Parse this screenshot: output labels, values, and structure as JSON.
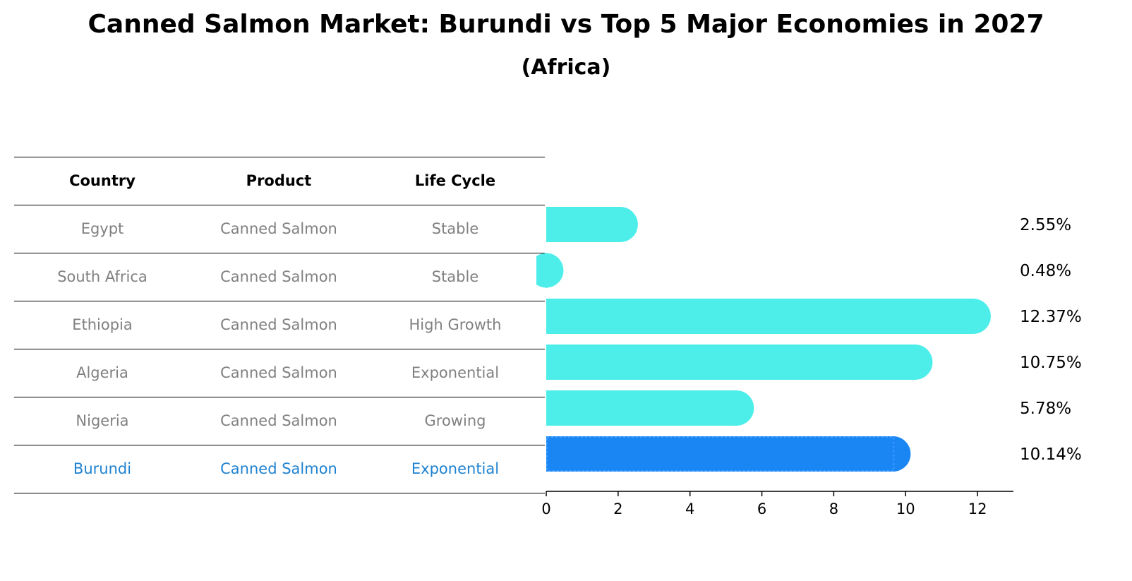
{
  "title": "Canned Salmon Market: Burundi vs Top 5 Major Economies in 2027",
  "subtitle": "(Africa)",
  "table": {
    "headers": [
      "Country",
      "Product",
      "Life Cycle"
    ],
    "rows": [
      [
        "Egypt",
        "Canned Salmon",
        "Stable"
      ],
      [
        "South Africa",
        "Canned Salmon",
        "Stable"
      ],
      [
        "Ethiopia",
        "Canned Salmon",
        "High Growth"
      ],
      [
        "Algeria",
        "Canned Salmon",
        "Exponential"
      ],
      [
        "Nigeria",
        "Canned Salmon",
        "Growing"
      ],
      [
        "Burundi",
        "Canned Salmon",
        "Exponential"
      ]
    ]
  },
  "chart_data": {
    "type": "bar",
    "orientation": "horizontal",
    "categories": [
      "Egypt",
      "South Africa",
      "Ethiopia",
      "Algeria",
      "Nigeria",
      "Burundi"
    ],
    "values": [
      2.55,
      0.48,
      12.37,
      10.75,
      5.78,
      10.14
    ],
    "value_labels": [
      "2.55%",
      "0.48%",
      "12.37%",
      "10.75%",
      "5.78%",
      "10.14%"
    ],
    "highlight": "Burundi",
    "xlim": [
      0,
      13
    ],
    "xticks": [
      0,
      2,
      4,
      6,
      8,
      10,
      12
    ],
    "xtick_labels": [
      "0",
      "2",
      "4",
      "6",
      "8",
      "10",
      "12"
    ],
    "colors": {
      "default": "#4deeea",
      "highlight": "#1a86f4",
      "highlight_text": "#1e82d1"
    }
  }
}
